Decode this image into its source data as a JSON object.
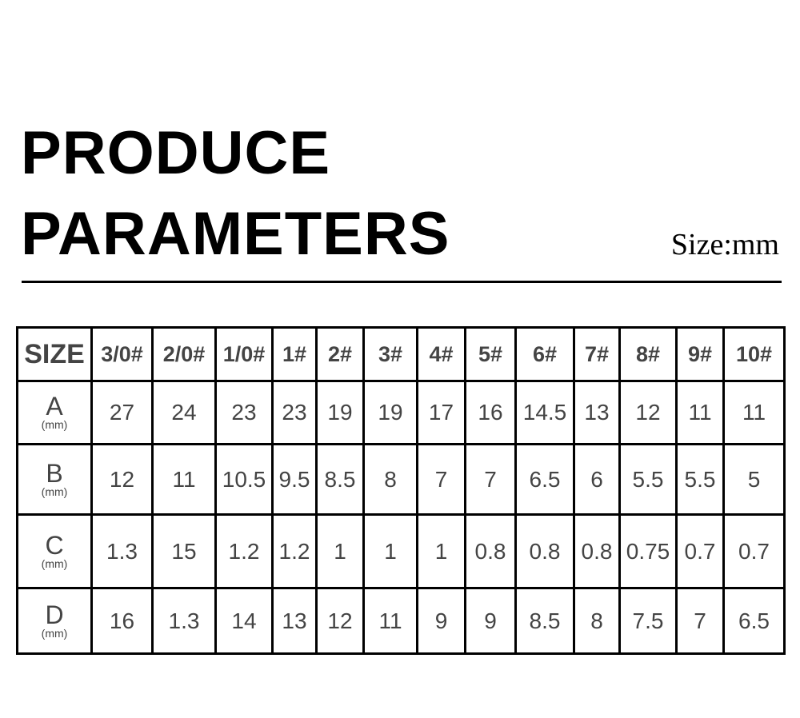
{
  "title_line1": "PRODUCE",
  "title_line2": "PARAMETERS",
  "unit_note": "Size:mm",
  "table": {
    "header": [
      "SIZE",
      "3/0#",
      "2/0#",
      "1/0#",
      "1#",
      "2#",
      "3#",
      "4#",
      "5#",
      "6#",
      "7#",
      "8#",
      "9#",
      "10#"
    ],
    "rows": [
      {
        "label": "A",
        "unit": "(mm)",
        "values": [
          "27",
          "24",
          "23",
          "23",
          "19",
          "19",
          "17",
          "16",
          "14.5",
          "13",
          "12",
          "11",
          "11"
        ]
      },
      {
        "label": "B",
        "unit": "(mm)",
        "values": [
          "12",
          "11",
          "10.5",
          "9.5",
          "8.5",
          "8",
          "7",
          "7",
          "6.5",
          "6",
          "5.5",
          "5.5",
          "5"
        ]
      },
      {
        "label": "C",
        "unit": "(mm)",
        "values": [
          "1.3",
          "15",
          "1.2",
          "1.2",
          "1",
          "1",
          "1",
          "0.8",
          "0.8",
          "0.8",
          "0.75",
          "0.7",
          "0.7"
        ]
      },
      {
        "label": "D",
        "unit": "(mm)",
        "values": [
          "16",
          "1.3",
          "14",
          "13",
          "12",
          "11",
          "9",
          "9",
          "8.5",
          "8",
          "7.5",
          "7",
          "6.5"
        ]
      }
    ]
  }
}
